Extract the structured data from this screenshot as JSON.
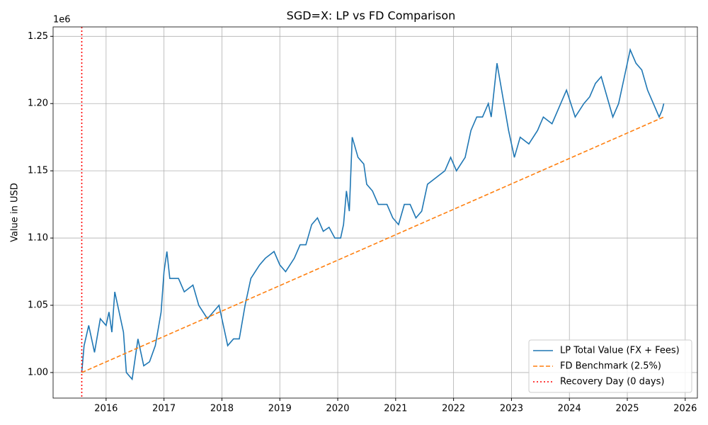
{
  "chart_data": {
    "type": "line",
    "title": "SGD=X: LP vs FD Comparison",
    "y_label": "Value in USD",
    "y_offset_label": "1e6",
    "xlim": [
      2015.085,
      2026.21
    ],
    "xticks": [
      2016,
      2017,
      2018,
      2019,
      2020,
      2021,
      2022,
      2023,
      2024,
      2025,
      2026
    ],
    "ylim": [
      0.981,
      1.257
    ],
    "yticks": [
      {
        "value": 1.0,
        "label": "1.00"
      },
      {
        "value": 1.05,
        "label": "1.05"
      },
      {
        "value": 1.1,
        "label": "1.10"
      },
      {
        "value": 1.15,
        "label": "1.15"
      },
      {
        "value": 1.2,
        "label": "1.20"
      },
      {
        "value": 1.25,
        "label": "1.25"
      }
    ],
    "grid": true,
    "legend": "lower right",
    "series": [
      {
        "name": "LP Total Value (FX + Fees)",
        "color": "#1f77b4",
        "dash": "solid",
        "x": [
          2015.58,
          2015.62,
          2015.7,
          2015.8,
          2015.9,
          2016.0,
          2016.05,
          2016.1,
          2016.15,
          2016.2,
          2016.3,
          2016.35,
          2016.45,
          2016.55,
          2016.65,
          2016.75,
          2016.85,
          2016.95,
          2017.0,
          2017.05,
          2017.1,
          2017.25,
          2017.35,
          2017.5,
          2017.6,
          2017.75,
          2017.85,
          2017.95,
          2018.0,
          2018.1,
          2018.2,
          2018.3,
          2018.4,
          2018.5,
          2018.65,
          2018.75,
          2018.9,
          2019.0,
          2019.1,
          2019.25,
          2019.35,
          2019.45,
          2019.55,
          2019.65,
          2019.75,
          2019.85,
          2019.95,
          2020.05,
          2020.1,
          2020.15,
          2020.2,
          2020.25,
          2020.35,
          2020.45,
          2020.5,
          2020.6,
          2020.7,
          2020.85,
          2020.95,
          2021.05,
          2021.15,
          2021.25,
          2021.35,
          2021.45,
          2021.55,
          2021.7,
          2021.85,
          2021.95,
          2022.05,
          2022.2,
          2022.3,
          2022.4,
          2022.5,
          2022.6,
          2022.65,
          2022.75,
          2022.85,
          2022.95,
          2023.05,
          2023.15,
          2023.3,
          2023.45,
          2023.55,
          2023.7,
          2023.85,
          2023.95,
          2024.1,
          2024.25,
          2024.35,
          2024.45,
          2024.55,
          2024.65,
          2024.75,
          2024.85,
          2024.95,
          2025.05,
          2025.15,
          2025.25,
          2025.35,
          2025.45,
          2025.55,
          2025.6,
          2025.63
        ],
        "values": [
          1.0,
          1.02,
          1.035,
          1.015,
          1.04,
          1.035,
          1.045,
          1.03,
          1.06,
          1.05,
          1.03,
          1.0,
          0.995,
          1.025,
          1.005,
          1.008,
          1.02,
          1.045,
          1.075,
          1.09,
          1.07,
          1.07,
          1.06,
          1.065,
          1.05,
          1.04,
          1.045,
          1.05,
          1.04,
          1.02,
          1.025,
          1.025,
          1.05,
          1.07,
          1.08,
          1.085,
          1.09,
          1.08,
          1.075,
          1.085,
          1.095,
          1.095,
          1.11,
          1.115,
          1.105,
          1.108,
          1.1,
          1.1,
          1.11,
          1.135,
          1.12,
          1.175,
          1.16,
          1.155,
          1.14,
          1.135,
          1.125,
          1.125,
          1.115,
          1.11,
          1.125,
          1.125,
          1.115,
          1.12,
          1.14,
          1.145,
          1.15,
          1.16,
          1.15,
          1.16,
          1.18,
          1.19,
          1.19,
          1.2,
          1.19,
          1.23,
          1.205,
          1.18,
          1.16,
          1.175,
          1.17,
          1.18,
          1.19,
          1.185,
          1.2,
          1.21,
          1.19,
          1.2,
          1.205,
          1.215,
          1.22,
          1.205,
          1.19,
          1.2,
          1.22,
          1.24,
          1.23,
          1.225,
          1.21,
          1.2,
          1.19,
          1.195,
          1.2
        ]
      },
      {
        "name": "FD Benchmark (2.5%)",
        "color": "#ff7f0e",
        "dash": "dashed",
        "x": [
          2015.58,
          2025.63
        ],
        "values": [
          1.0,
          1.19
        ]
      }
    ],
    "vlines": [
      {
        "name": "Recovery Day (0 days)",
        "color": "#ff0000",
        "dash": "dotted",
        "x": 2015.58
      }
    ]
  }
}
